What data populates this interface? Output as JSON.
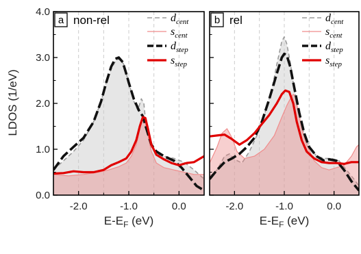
{
  "chart_data": [
    {
      "type": "area",
      "panel_letter": "a",
      "title": "non-rel",
      "xlabel_main": "E-E",
      "xlabel_sub": "F",
      "xlabel_unit": " (eV)",
      "ylabel": "LDOS (1/eV)",
      "xlim": [
        -2.5,
        0.5
      ],
      "ylim": [
        0.0,
        4.0
      ],
      "xticks": [
        "-2.0",
        "-1.0",
        "0.0"
      ],
      "yticks": [
        "0.0",
        "1.0",
        "2.0",
        "3.0",
        "4.0"
      ],
      "legend_position": "top-right",
      "grid": "vertical dashed lines at -2.0, -1.5, -1.0, -0.5, 0.0",
      "series": [
        {
          "name": "d",
          "sub": "cent",
          "style": "gray-dashed-filled",
          "color": "#9a9a9a",
          "x": [
            -2.5,
            -2.3,
            -2.1,
            -1.9,
            -1.7,
            -1.55,
            -1.45,
            -1.35,
            -1.25,
            -1.18,
            -1.1,
            -1.0,
            -0.9,
            -0.82,
            -0.75,
            -0.7,
            -0.65,
            -0.55,
            -0.45,
            -0.3,
            -0.1,
            0.1,
            0.3,
            0.5
          ],
          "y": [
            0.55,
            0.75,
            0.95,
            1.2,
            1.6,
            2.05,
            2.45,
            2.75,
            2.95,
            2.97,
            2.85,
            2.45,
            2.05,
            1.85,
            2.1,
            2.0,
            1.45,
            1.05,
            0.9,
            0.85,
            0.8,
            0.72,
            0.55,
            0.35
          ]
        },
        {
          "name": "s",
          "sub": "cent",
          "style": "pink-thin-filled",
          "color": "#f08c8c",
          "x": [
            -2.5,
            -2.2,
            -1.9,
            -1.6,
            -1.4,
            -1.2,
            -1.05,
            -0.95,
            -0.85,
            -0.8,
            -0.75,
            -0.7,
            -0.65,
            -0.6,
            -0.55,
            -0.45,
            -0.3,
            -0.1,
            0.1,
            0.3,
            0.5
          ],
          "y": [
            0.45,
            0.42,
            0.45,
            0.5,
            0.55,
            0.62,
            0.7,
            0.85,
            1.1,
            1.35,
            1.6,
            1.65,
            1.5,
            1.2,
            0.95,
            0.7,
            0.6,
            0.55,
            0.5,
            0.45,
            0.45
          ]
        },
        {
          "name": "d",
          "sub": "step",
          "style": "black-thick-dashed",
          "color": "#111111",
          "x": [
            -2.5,
            -2.3,
            -2.1,
            -1.9,
            -1.7,
            -1.55,
            -1.45,
            -1.35,
            -1.27,
            -1.2,
            -1.12,
            -1.05,
            -1.0,
            -0.9,
            -0.8,
            -0.72,
            -0.65,
            -0.55,
            -0.45,
            -0.3,
            -0.1,
            0.05,
            0.2,
            0.35,
            0.5
          ],
          "y": [
            0.55,
            0.85,
            1.05,
            1.25,
            1.6,
            2.05,
            2.45,
            2.8,
            2.97,
            3.0,
            2.9,
            2.65,
            2.45,
            2.1,
            1.85,
            1.72,
            1.45,
            1.1,
            0.95,
            0.85,
            0.75,
            0.6,
            0.4,
            0.2,
            0.1
          ]
        },
        {
          "name": "s",
          "sub": "step",
          "style": "red-thick-solid",
          "color": "#e00000",
          "x": [
            -2.5,
            -2.3,
            -2.1,
            -1.9,
            -1.7,
            -1.5,
            -1.35,
            -1.2,
            -1.05,
            -0.95,
            -0.85,
            -0.78,
            -0.72,
            -0.67,
            -0.62,
            -0.55,
            -0.45,
            -0.3,
            -0.15,
            0.0,
            0.15,
            0.3,
            0.5
          ],
          "y": [
            0.47,
            0.48,
            0.52,
            0.5,
            0.5,
            0.55,
            0.65,
            0.72,
            0.8,
            0.95,
            1.2,
            1.5,
            1.7,
            1.68,
            1.45,
            1.1,
            0.88,
            0.78,
            0.7,
            0.65,
            0.7,
            0.72,
            0.85
          ]
        }
      ]
    },
    {
      "type": "area",
      "panel_letter": "b",
      "title": "rel",
      "xlabel_main": "E-E",
      "xlabel_sub": "F",
      "xlabel_unit": " (eV)",
      "xlim": [
        -2.5,
        0.5
      ],
      "ylim": [
        0.0,
        4.0
      ],
      "xticks": [
        "-2.0",
        "-1.0",
        "0.0"
      ],
      "legend_position": "top-right",
      "grid": "vertical dashed lines at -2.0, -1.5, -1.0, -0.5, 0.0",
      "series": [
        {
          "name": "d",
          "sub": "cent",
          "style": "gray-dashed-filled",
          "color": "#9a9a9a",
          "x": [
            -2.5,
            -2.35,
            -2.2,
            -2.1,
            -2.0,
            -1.85,
            -1.7,
            -1.55,
            -1.4,
            -1.25,
            -1.15,
            -1.05,
            -1.0,
            -0.95,
            -0.88,
            -0.8,
            -0.7,
            -0.6,
            -0.5,
            -0.35,
            -0.2,
            -0.05,
            0.1,
            0.25,
            0.4,
            0.5
          ],
          "y": [
            0.4,
            0.55,
            0.85,
            0.9,
            0.78,
            0.7,
            0.95,
            1.3,
            1.75,
            2.3,
            2.85,
            3.35,
            3.45,
            3.3,
            2.9,
            2.3,
            1.75,
            1.35,
            1.05,
            0.85,
            0.8,
            0.8,
            0.75,
            0.55,
            0.35,
            0.2
          ]
        },
        {
          "name": "s",
          "sub": "cent",
          "style": "pink-thin-filled",
          "color": "#f08c8c",
          "x": [
            -2.5,
            -2.35,
            -2.25,
            -2.15,
            -2.05,
            -1.95,
            -1.8,
            -1.6,
            -1.4,
            -1.2,
            -1.05,
            -0.95,
            -0.88,
            -0.82,
            -0.78,
            -0.72,
            -0.65,
            -0.55,
            -0.4,
            -0.25,
            -0.1,
            0.05,
            0.2,
            0.35,
            0.45,
            0.5
          ],
          "y": [
            0.7,
            1.05,
            1.35,
            1.45,
            1.25,
            0.95,
            0.8,
            0.85,
            1.0,
            1.3,
            1.7,
            1.95,
            2.1,
            2.2,
            2.15,
            1.85,
            1.45,
            1.1,
            0.75,
            0.6,
            0.55,
            0.6,
            0.65,
            0.85,
            1.05,
            1.1
          ]
        },
        {
          "name": "d",
          "sub": "step",
          "style": "black-thick-dashed",
          "color": "#111111",
          "x": [
            -2.5,
            -2.35,
            -2.2,
            -2.05,
            -1.9,
            -1.75,
            -1.6,
            -1.45,
            -1.3,
            -1.15,
            -1.05,
            -1.0,
            -0.95,
            -0.88,
            -0.8,
            -0.7,
            -0.6,
            -0.5,
            -0.35,
            -0.2,
            -0.1,
            0.05,
            0.2,
            0.35,
            0.5
          ],
          "y": [
            0.35,
            0.55,
            0.72,
            0.8,
            0.9,
            1.05,
            1.25,
            1.6,
            2.1,
            2.65,
            3.0,
            3.08,
            3.05,
            2.8,
            2.35,
            1.8,
            1.35,
            1.05,
            0.85,
            0.75,
            0.78,
            0.75,
            0.55,
            0.3,
            0.1
          ]
        },
        {
          "name": "s",
          "sub": "step",
          "style": "red-thick-solid",
          "color": "#e00000",
          "x": [
            -2.5,
            -2.35,
            -2.2,
            -2.05,
            -1.9,
            -1.75,
            -1.6,
            -1.45,
            -1.3,
            -1.15,
            -1.05,
            -0.98,
            -0.9,
            -0.82,
            -0.75,
            -0.65,
            -0.55,
            -0.4,
            -0.25,
            -0.1,
            0.05,
            0.2,
            0.35,
            0.5
          ],
          "y": [
            1.28,
            1.3,
            1.32,
            1.22,
            1.1,
            1.2,
            1.35,
            1.55,
            1.75,
            2.0,
            2.2,
            2.28,
            2.25,
            2.0,
            1.6,
            1.2,
            0.95,
            0.8,
            0.72,
            0.7,
            0.7,
            0.68,
            0.72,
            0.72
          ]
        }
      ]
    }
  ]
}
